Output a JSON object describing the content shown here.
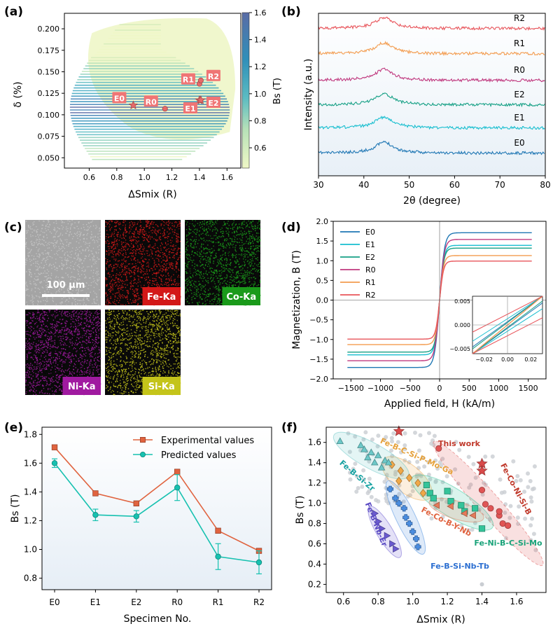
{
  "panel_labels": [
    "(a)",
    "(b)",
    "(c)",
    "(d)",
    "(e)",
    "(f)"
  ],
  "colors": {
    "red": "#d9534f",
    "teal": "#1abc9c",
    "orange": "#f4a460",
    "purple": "#6a5acd",
    "blue": "#4a90d9",
    "green": "#2bb38a"
  },
  "chart_data": [
    {
      "id": "a",
      "type": "scatter",
      "title": "",
      "xlabel": "ΔSmix (R)",
      "ylabel": "δ (%)",
      "xlim": [
        0.42,
        1.7
      ],
      "ylim": [
        0.038,
        0.218
      ],
      "xticks": [
        "0.6",
        "0.8",
        "1.0",
        "1.2",
        "1.4",
        "1.6"
      ],
      "yticks": [
        "0.050",
        "0.075",
        "0.100",
        "0.125",
        "0.150",
        "0.175",
        "0.200"
      ],
      "colorbar": {
        "label": "Bs (T)",
        "range": [
          0.45,
          1.6
        ],
        "ticks": [
          "0.6",
          "0.8",
          "1.0",
          "1.2",
          "1.4",
          "1.6"
        ]
      },
      "points": [
        {
          "name": "E0",
          "x": 0.92,
          "y": 0.111,
          "marker": "star"
        },
        {
          "name": "R0",
          "x": 1.15,
          "y": 0.107,
          "marker": "circle"
        },
        {
          "name": "E1",
          "x": 1.4,
          "y": 0.117,
          "marker": "star"
        },
        {
          "name": "E2",
          "x": 1.41,
          "y": 0.117,
          "marker": "star"
        },
        {
          "name": "R1",
          "x": 1.4,
          "y": 0.136,
          "marker": "circle"
        },
        {
          "name": "R2",
          "x": 1.41,
          "y": 0.14,
          "marker": "circle"
        }
      ]
    },
    {
      "id": "b",
      "type": "line",
      "xlabel": "2θ (degree)",
      "ylabel": "Intensity (a.u.)",
      "xlim": [
        30,
        80
      ],
      "xticks": [
        "30",
        "40",
        "50",
        "60",
        "70",
        "80"
      ],
      "series": [
        {
          "name": "E0",
          "color": "#1f77b4",
          "offset": 0.0
        },
        {
          "name": "E1",
          "color": "#17becf",
          "offset": 1.0
        },
        {
          "name": "E2",
          "color": "#16a085",
          "offset": 2.0
        },
        {
          "name": "R0",
          "color": "#c0397f",
          "offset": 3.0
        },
        {
          "name": "R1",
          "color": "#f39c4f",
          "offset": 4.0
        },
        {
          "name": "R2",
          "color": "#e8545a",
          "offset": 5.0
        }
      ],
      "peak_position": 44.5
    },
    {
      "id": "c",
      "type": "image-grid",
      "scale_bar": "100 μm",
      "tiles": [
        {
          "label": "",
          "color": "#9a9a9a"
        },
        {
          "label": "Fe-Ka",
          "color": "#d31818"
        },
        {
          "label": "Co-Ka",
          "color": "#1a9a1a"
        },
        {
          "label": "Ni-Ka",
          "color": "#a01aa0"
        },
        {
          "label": "Si-Ka",
          "color": "#c4c41a"
        }
      ]
    },
    {
      "id": "d",
      "type": "line",
      "xlabel": "Applied field, H (kA/m)",
      "ylabel": "Magnetization, B (T)",
      "xlim": [
        -1800,
        1800
      ],
      "ylim": [
        -2.0,
        2.0
      ],
      "xticks": [
        "−1500",
        "−1000",
        "−500",
        "0",
        "500",
        "1000",
        "1500"
      ],
      "yticks": [
        "−2.0",
        "−1.5",
        "−1.0",
        "−0.5",
        "0.0",
        "0.5",
        "1.0",
        "1.5",
        "2.0"
      ],
      "series": [
        {
          "name": "E0",
          "Bs": 1.71,
          "color": "#1f77b4"
        },
        {
          "name": "E1",
          "Bs": 1.39,
          "color": "#17becf"
        },
        {
          "name": "E2",
          "Bs": 1.32,
          "color": "#16a085"
        },
        {
          "name": "R0",
          "Bs": 1.54,
          "color": "#c0397f"
        },
        {
          "name": "R1",
          "Bs": 1.13,
          "color": "#f39c4f"
        },
        {
          "name": "R2",
          "Bs": 0.99,
          "color": "#e8545a"
        }
      ],
      "inset": {
        "xticks": [
          "−0.02",
          "0.00",
          "0.02"
        ],
        "yticks": [
          "0.005",
          "0.000",
          "−0.005"
        ]
      }
    },
    {
      "id": "e",
      "type": "line",
      "xlabel": "Specimen No.",
      "ylabel": "Bs (T)",
      "categories": [
        "E0",
        "E1",
        "E2",
        "R0",
        "R1",
        "R2"
      ],
      "ylim": [
        0.72,
        1.85
      ],
      "yticks": [
        "0.8",
        "1.0",
        "1.2",
        "1.4",
        "1.6",
        "1.8"
      ],
      "series": [
        {
          "name": "Experimental values",
          "values": [
            1.71,
            1.39,
            1.32,
            1.54,
            1.13,
            0.99
          ],
          "color": "#e0633f",
          "marker": "square"
        },
        {
          "name": "Predicted values",
          "values": [
            1.6,
            1.24,
            1.23,
            1.43,
            0.95,
            0.91
          ],
          "errors": [
            0.03,
            0.04,
            0.04,
            0.09,
            0.09,
            0.08
          ],
          "color": "#17c1b0",
          "marker": "circle"
        }
      ]
    },
    {
      "id": "f",
      "type": "scatter",
      "xlabel": "ΔSmix (R)",
      "ylabel": "Bs (T)",
      "xlim": [
        0.5,
        1.77
      ],
      "ylim": [
        0.12,
        1.75
      ],
      "xticks": [
        "0.6",
        "0.8",
        "1.0",
        "1.2",
        "1.4",
        "1.6"
      ],
      "yticks": [
        "0.2",
        "0.4",
        "0.6",
        "0.8",
        "1.0",
        "1.2",
        "1.4",
        "1.6"
      ],
      "groups": [
        {
          "name": "This work",
          "color": "#d94a4a",
          "marker": "star",
          "points": [
            [
              0.92,
              1.71
            ],
            [
              1.4,
              1.39
            ],
            [
              1.4,
              1.32
            ]
          ]
        },
        {
          "name": "Fe-Co-Ni-Si-B",
          "color": "#e05555",
          "marker": "circle",
          "points": [
            [
              1.15,
              1.54
            ],
            [
              1.4,
              1.13
            ],
            [
              1.42,
              0.99
            ],
            [
              1.45,
              0.95
            ],
            [
              1.5,
              0.88
            ],
            [
              1.52,
              0.8
            ],
            [
              1.55,
              0.78
            ],
            [
              1.5,
              0.92
            ]
          ]
        },
        {
          "name": "Fe-B-C-Si-P-Mo-Ga",
          "color": "#f0a848",
          "marker": "diamond",
          "points": [
            [
              0.88,
              1.38
            ],
            [
              0.93,
              1.32
            ],
            [
              0.98,
              1.25
            ],
            [
              1.03,
              1.2
            ],
            [
              1.06,
              1.1
            ],
            [
              0.92,
              1.22
            ]
          ]
        },
        {
          "name": "Fe-B-Si-Zr",
          "color": "#6cc8c8",
          "marker": "triangle",
          "points": [
            [
              0.58,
              1.61
            ],
            [
              0.7,
              1.57
            ],
            [
              0.72,
              1.53
            ],
            [
              0.76,
              1.5
            ],
            [
              0.8,
              1.47
            ],
            [
              0.78,
              1.4
            ],
            [
              0.74,
              1.45
            ],
            [
              0.84,
              1.42
            ],
            [
              0.86,
              1.4
            ],
            [
              0.82,
              1.35
            ]
          ]
        },
        {
          "name": "Fe-Ni-B-C-Si-Mo",
          "color": "#34c49a",
          "marker": "square",
          "points": [
            [
              1.08,
              1.18
            ],
            [
              1.1,
              1.1
            ],
            [
              1.12,
              1.05
            ],
            [
              1.2,
              1.12
            ],
            [
              1.22,
              1.02
            ],
            [
              1.28,
              0.98
            ],
            [
              1.36,
              0.95
            ],
            [
              1.4,
              0.75
            ],
            [
              1.3,
              0.92
            ]
          ]
        },
        {
          "name": "Fe-Co-B-Y-Nb",
          "color": "#e67a5a",
          "marker": "triangle-left",
          "points": [
            [
              1.14,
              0.98
            ],
            [
              1.22,
              0.97
            ],
            [
              1.3,
              0.9
            ],
            [
              1.35,
              0.88
            ]
          ]
        },
        {
          "name": "Fe-B-Si-Nb-Tb",
          "color": "#4a8de0",
          "marker": "plus",
          "points": [
            [
              0.87,
              1.14
            ],
            [
              0.9,
              1.05
            ],
            [
              0.92,
              1.0
            ],
            [
              0.95,
              0.95
            ],
            [
              0.96,
              0.86
            ],
            [
              0.98,
              0.8
            ],
            [
              1.0,
              0.72
            ],
            [
              1.02,
              0.65
            ],
            [
              1.03,
              0.57
            ]
          ]
        },
        {
          "name": "Fe-B-Nb-Er",
          "color": "#6a5ad0",
          "marker": "triangle-right",
          "points": [
            [
              0.78,
              0.9
            ],
            [
              0.82,
              0.75
            ],
            [
              0.85,
              0.68
            ],
            [
              0.88,
              0.6
            ],
            [
              0.9,
              0.55
            ],
            [
              0.8,
              0.82
            ]
          ]
        }
      ]
    }
  ]
}
